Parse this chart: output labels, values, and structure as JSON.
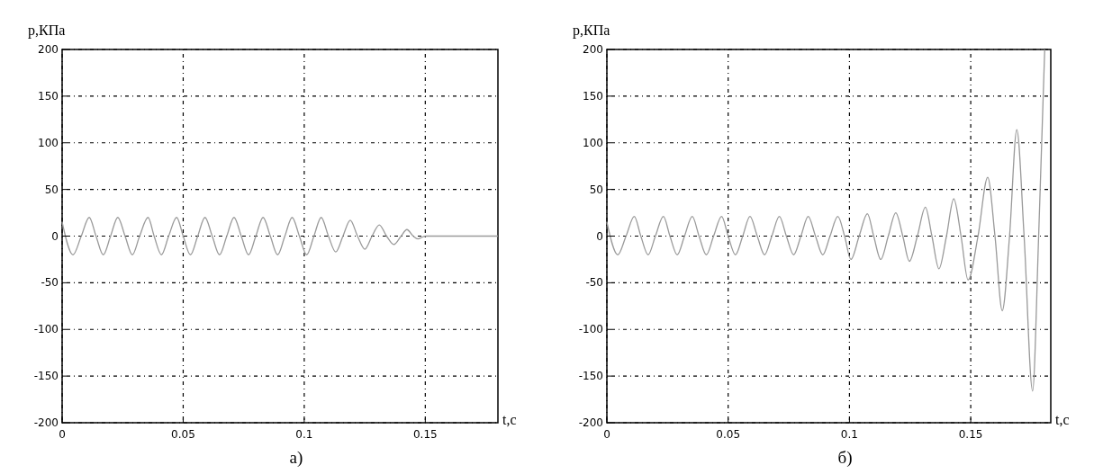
{
  "chart_data": [
    {
      "type": "line",
      "xlabel": "t,с",
      "ylabel": "p,КПа",
      "xlim": [
        0,
        0.18
      ],
      "ylim": [
        -200,
        200
      ],
      "xticks": [
        0,
        0.05,
        0.1,
        0.15
      ],
      "yticks": [
        -200,
        -150,
        -100,
        -50,
        0,
        50,
        100,
        150,
        200
      ],
      "grid": true,
      "annotations": [
        "а)"
      ],
      "series": [
        {
          "color": "#9a9a9a",
          "x": [
            0,
            0.0045,
            0.0079,
            0.0112,
            0.014,
            0.017,
            0.02,
            0.023,
            0.026,
            0.029,
            0.032,
            0.0355,
            0.038,
            0.041,
            0.044,
            0.0473,
            0.05,
            0.053,
            0.056,
            0.059,
            0.062,
            0.065,
            0.068,
            0.071,
            0.074,
            0.077,
            0.08,
            0.083,
            0.086,
            0.089,
            0.092,
            0.095,
            0.098,
            0.101,
            0.104,
            0.107,
            0.11,
            0.113,
            0.116,
            0.119,
            0.122,
            0.125,
            0.128,
            0.131,
            0.134,
            0.137,
            0.14,
            0.1424,
            0.145,
            0.147,
            0.15,
            0.18
          ],
          "values": [
            15,
            -20,
            0,
            20,
            0,
            -20,
            0,
            20,
            0,
            -20,
            0,
            20,
            0,
            -20,
            0,
            20,
            0,
            -20,
            0,
            20,
            0,
            -20,
            0,
            20,
            0,
            -20,
            0,
            20,
            0,
            -20,
            0,
            20,
            0,
            -20,
            0,
            20,
            0,
            -17,
            0,
            17,
            0,
            -14,
            0,
            12,
            0,
            -9,
            0,
            7,
            0,
            -3,
            0,
            0
          ]
        }
      ]
    },
    {
      "type": "line",
      "xlabel": "t,с",
      "ylabel": "p,КПа",
      "xlim": [
        0,
        0.183
      ],
      "ylim": [
        -200,
        200
      ],
      "xticks": [
        0,
        0.05,
        0.1,
        0.15
      ],
      "yticks": [
        -200,
        -150,
        -100,
        -50,
        0,
        50,
        100,
        150,
        200
      ],
      "grid": true,
      "annotations": [
        "б)"
      ],
      "series": [
        {
          "color": "#9a9a9a",
          "x": [
            0,
            0.0045,
            0.0079,
            0.0113,
            0.014,
            0.017,
            0.02,
            0.0233,
            0.026,
            0.029,
            0.032,
            0.0352,
            0.038,
            0.041,
            0.044,
            0.0473,
            0.05,
            0.053,
            0.056,
            0.059,
            0.062,
            0.065,
            0.068,
            0.0711,
            0.074,
            0.077,
            0.08,
            0.083,
            0.086,
            0.089,
            0.092,
            0.0952,
            0.098,
            0.1006,
            0.104,
            0.1074,
            0.11,
            0.1129,
            0.116,
            0.1191,
            0.122,
            0.1247,
            0.128,
            0.1313,
            0.134,
            0.1369,
            0.14,
            0.143,
            0.146,
            0.1489,
            0.153,
            0.157,
            0.16,
            0.163,
            0.166,
            0.169,
            0.172,
            0.1755,
            0.178,
            0.1805
          ],
          "values": [
            15,
            -20,
            0,
            21,
            0,
            -20,
            0,
            21,
            0,
            -20,
            0,
            21,
            0,
            -20,
            0,
            21,
            0,
            -20,
            0,
            21,
            0,
            -20,
            0,
            21,
            0,
            -20,
            0,
            21,
            0,
            -20,
            0,
            21,
            0,
            -25,
            0,
            24,
            0,
            -25,
            0,
            25,
            0,
            -27,
            0,
            31,
            0,
            -35,
            0,
            40,
            0,
            -47,
            0,
            63,
            0,
            -80,
            0,
            114,
            0,
            -166,
            0,
            200
          ]
        }
      ]
    }
  ]
}
